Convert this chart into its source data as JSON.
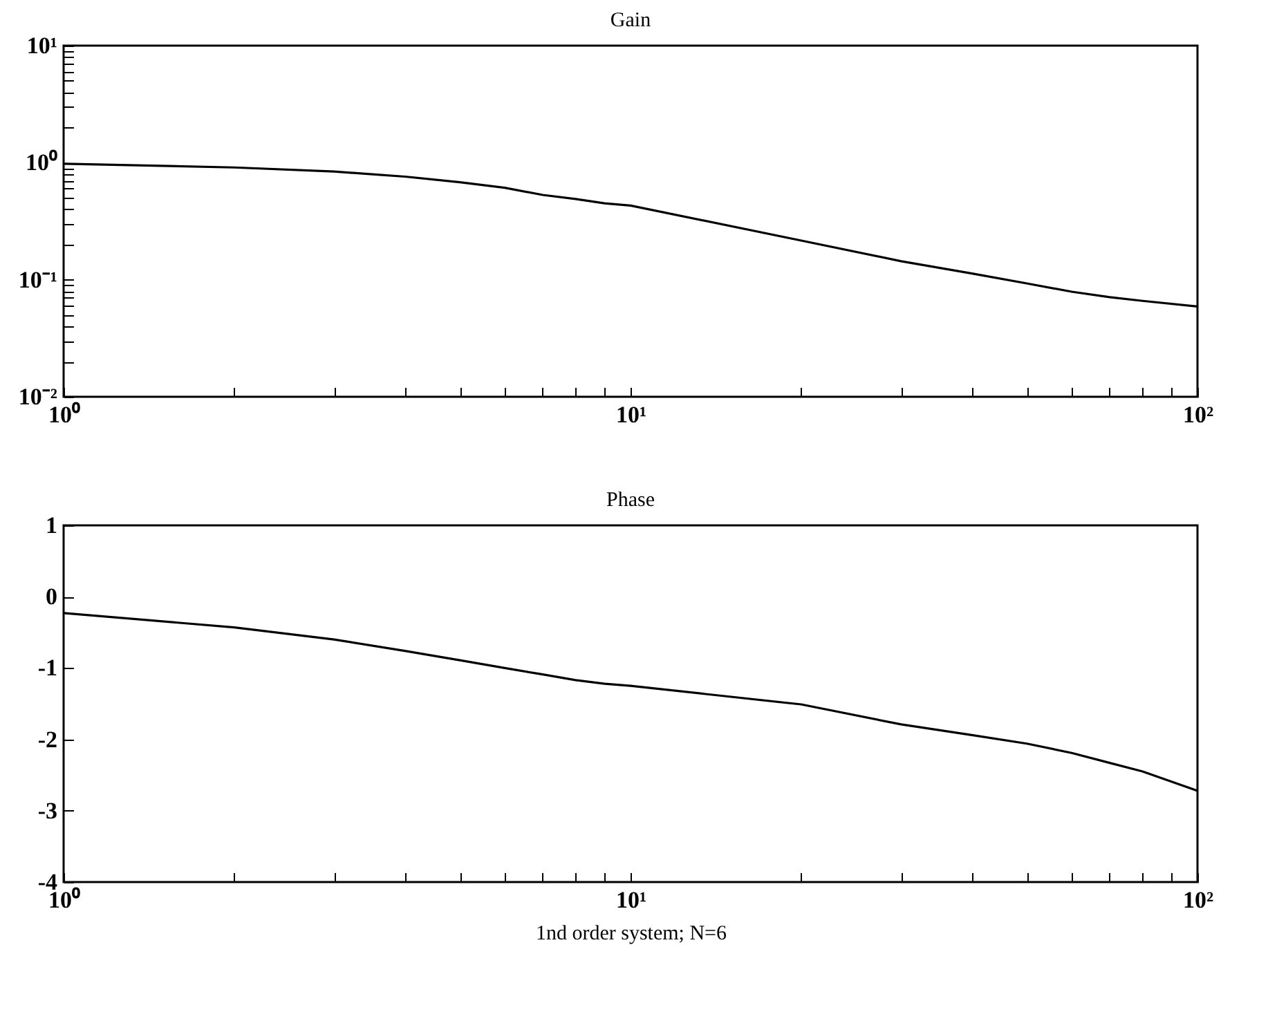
{
  "chart_data": [
    {
      "type": "line",
      "title": "Gain",
      "log": "xy",
      "x": [
        1,
        2,
        3,
        4,
        5,
        6,
        7,
        8,
        9,
        10,
        20,
        30,
        40,
        50,
        60,
        70,
        80,
        100
      ],
      "series": [
        {
          "color": "#000000",
          "values": [
            0.98,
            0.91,
            0.84,
            0.76,
            0.68,
            0.61,
            0.53,
            0.49,
            0.45,
            0.43,
            0.216,
            0.144,
            0.113,
            0.093,
            0.079,
            0.071,
            0.066,
            0.059
          ]
        }
      ],
      "xlim": [
        1,
        100
      ],
      "ylim": [
        0.01,
        10
      ],
      "xticks": [
        {
          "value": 1,
          "label": "10⁰"
        },
        {
          "value": 2,
          "label": null
        },
        {
          "value": 3,
          "label": null
        },
        {
          "value": 4,
          "label": null
        },
        {
          "value": 5,
          "label": null
        },
        {
          "value": 6,
          "label": null
        },
        {
          "value": 7,
          "label": null
        },
        {
          "value": 8,
          "label": null
        },
        {
          "value": 9,
          "label": null
        },
        {
          "value": 10,
          "label": "10¹"
        },
        {
          "value": 20,
          "label": null
        },
        {
          "value": 30,
          "label": null
        },
        {
          "value": 40,
          "label": null
        },
        {
          "value": 50,
          "label": null
        },
        {
          "value": 60,
          "label": null
        },
        {
          "value": 70,
          "label": null
        },
        {
          "value": 80,
          "label": null
        },
        {
          "value": 90,
          "label": null
        },
        {
          "value": 100,
          "label": "10²"
        }
      ],
      "yticks": [
        {
          "value": 0.01,
          "label": "10⁻²"
        },
        {
          "value": 0.02,
          "label": null
        },
        {
          "value": 0.03,
          "label": null
        },
        {
          "value": 0.04,
          "label": null
        },
        {
          "value": 0.05,
          "label": null
        },
        {
          "value": 0.06,
          "label": null
        },
        {
          "value": 0.07,
          "label": null
        },
        {
          "value": 0.08,
          "label": null
        },
        {
          "value": 0.09,
          "label": null
        },
        {
          "value": 0.1,
          "label": "10⁻¹"
        },
        {
          "value": 0.2,
          "label": null
        },
        {
          "value": 0.3,
          "label": null
        },
        {
          "value": 0.4,
          "label": null
        },
        {
          "value": 0.5,
          "label": null
        },
        {
          "value": 0.6,
          "label": null
        },
        {
          "value": 0.7,
          "label": null
        },
        {
          "value": 0.8,
          "label": null
        },
        {
          "value": 0.9,
          "label": null
        },
        {
          "value": 1,
          "label": "10⁰"
        },
        {
          "value": 2,
          "label": null
        },
        {
          "value": 3,
          "label": null
        },
        {
          "value": 4,
          "label": null
        },
        {
          "value": 5,
          "label": null
        },
        {
          "value": 6,
          "label": null
        },
        {
          "value": 7,
          "label": null
        },
        {
          "value": 8,
          "label": null
        },
        {
          "value": 9,
          "label": null
        },
        {
          "value": 10,
          "label": "10¹"
        }
      ]
    },
    {
      "type": "line",
      "title": "Phase",
      "log": "x",
      "xlabel": "1nd order system; N=6",
      "x": [
        1,
        2,
        3,
        4,
        5,
        6,
        7,
        8,
        9,
        10,
        20,
        30,
        40,
        50,
        60,
        70,
        80,
        100
      ],
      "series": [
        {
          "color": "#000000",
          "values": [
            -0.23,
            -0.43,
            -0.6,
            -0.76,
            -0.89,
            -1.0,
            -1.09,
            -1.17,
            -1.22,
            -1.25,
            -1.51,
            -1.79,
            -1.94,
            -2.06,
            -2.19,
            -2.33,
            -2.45,
            -2.72
          ]
        }
      ],
      "xlim": [
        1,
        100
      ],
      "ylim": [
        -4,
        1
      ],
      "xticks": [
        {
          "value": 1,
          "label": "10⁰"
        },
        {
          "value": 2,
          "label": null
        },
        {
          "value": 3,
          "label": null
        },
        {
          "value": 4,
          "label": null
        },
        {
          "value": 5,
          "label": null
        },
        {
          "value": 6,
          "label": null
        },
        {
          "value": 7,
          "label": null
        },
        {
          "value": 8,
          "label": null
        },
        {
          "value": 9,
          "label": null
        },
        {
          "value": 10,
          "label": "10¹"
        },
        {
          "value": 20,
          "label": null
        },
        {
          "value": 30,
          "label": null
        },
        {
          "value": 40,
          "label": null
        },
        {
          "value": 50,
          "label": null
        },
        {
          "value": 60,
          "label": null
        },
        {
          "value": 70,
          "label": null
        },
        {
          "value": 80,
          "label": null
        },
        {
          "value": 90,
          "label": null
        },
        {
          "value": 100,
          "label": "10²"
        }
      ],
      "yticks": [
        -4,
        -3,
        -2,
        -1,
        0,
        1
      ]
    }
  ]
}
